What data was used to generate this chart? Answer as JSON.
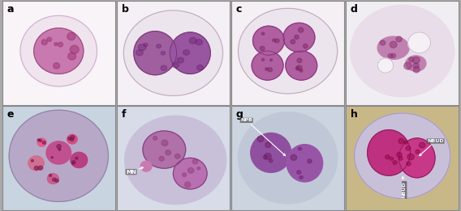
{
  "title": "",
  "nrows": 2,
  "ncols": 4,
  "figsize": [
    5.68,
    2.61
  ],
  "dpi": 100,
  "labels": [
    "a",
    "b",
    "c",
    "d",
    "e",
    "f",
    "g",
    "h"
  ],
  "label_fontsize": 9,
  "panel_bg_colors": [
    "#f8f4f8",
    "#f5f0f5",
    "#f4f0f4",
    "#f0eef2",
    "#c8d4e0",
    "#d8dce8",
    "#ccd4e0",
    "#c8b888"
  ],
  "fig_bg": "#aaaaaa"
}
